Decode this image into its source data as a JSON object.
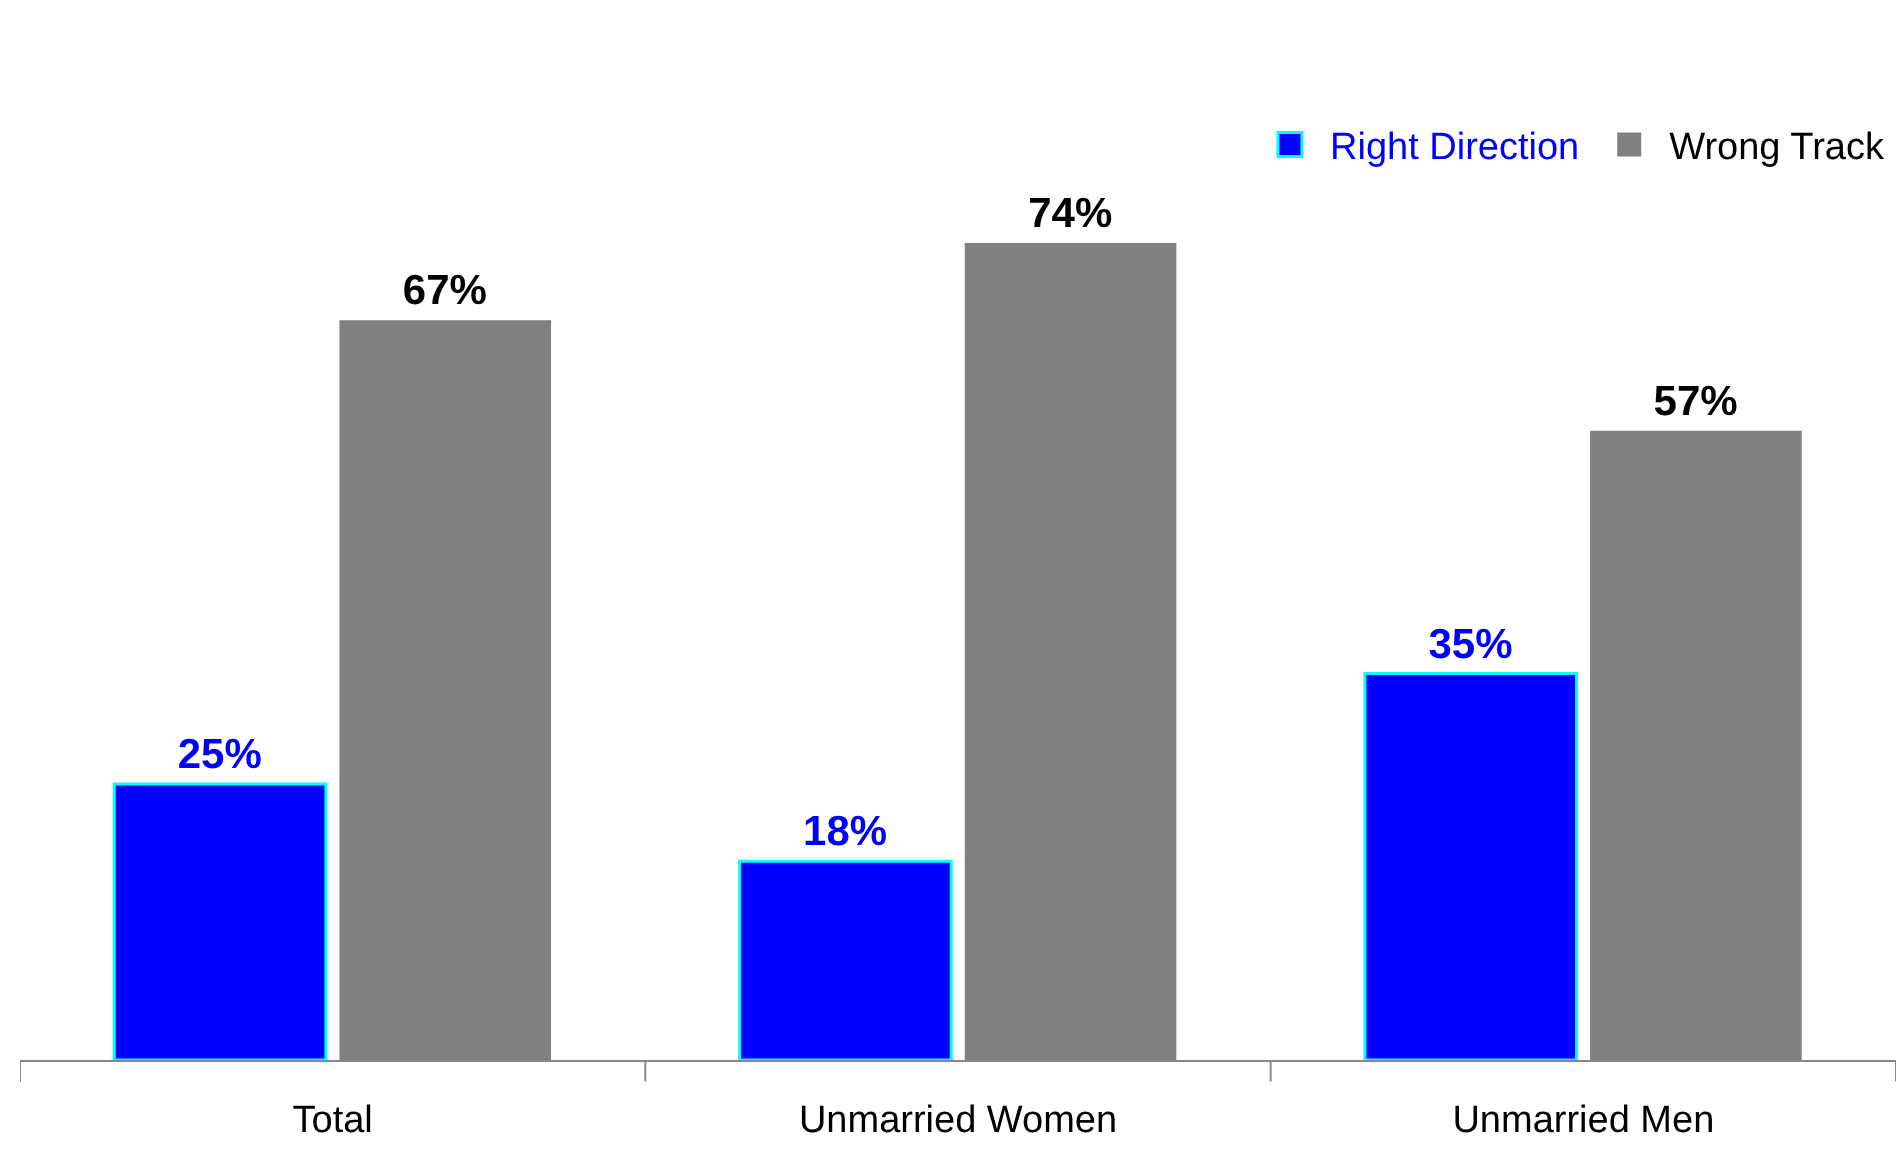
{
  "chart_data": {
    "type": "bar",
    "categories": [
      "Total",
      "Unmarried Women",
      "Unmarried Men"
    ],
    "series": [
      {
        "name": "Right Direction",
        "color": "#0000ff",
        "values": [
          25,
          18,
          35
        ],
        "value_labels": [
          "25%",
          "18%",
          "35%"
        ]
      },
      {
        "name": "Wrong Track",
        "color": "#808080",
        "values": [
          67,
          74,
          57
        ],
        "value_labels": [
          "67%",
          "74%",
          "57%"
        ]
      }
    ],
    "legend": "top right"
  }
}
